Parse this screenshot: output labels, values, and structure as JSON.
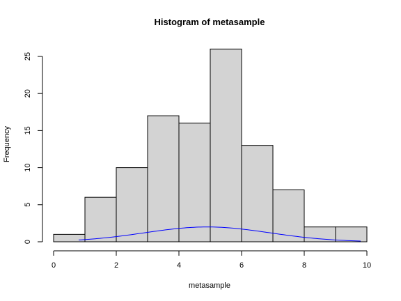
{
  "chart_data": {
    "type": "bar",
    "title": "Histogram of metasample",
    "xlabel": "metasample",
    "ylabel": "Frequency",
    "xlim": [
      0,
      10
    ],
    "ylim": [
      0,
      25
    ],
    "bins": [
      {
        "x0": 0,
        "x1": 1,
        "count": 1
      },
      {
        "x0": 1,
        "x1": 2,
        "count": 6
      },
      {
        "x0": 2,
        "x1": 3,
        "count": 10
      },
      {
        "x0": 3,
        "x1": 4,
        "count": 17
      },
      {
        "x0": 4,
        "x1": 5,
        "count": 16
      },
      {
        "x0": 5,
        "x1": 6,
        "count": 26
      },
      {
        "x0": 6,
        "x1": 7,
        "count": 13
      },
      {
        "x0": 7,
        "x1": 8,
        "count": 7
      },
      {
        "x0": 8,
        "x1": 9,
        "count": 2
      },
      {
        "x0": 9,
        "x1": 10,
        "count": 2
      }
    ],
    "x_ticks": [
      0,
      2,
      4,
      6,
      8,
      10
    ],
    "y_ticks": [
      0,
      5,
      10,
      15,
      20,
      25
    ],
    "curve": {
      "type": "normal-density",
      "mean": 4.9,
      "sd": 2.0,
      "x_range": [
        0.8,
        9.8
      ],
      "peak_value": 2.0,
      "color": "#0000ff"
    },
    "bar_fill": "#d3d3d3",
    "bar_stroke": "#000000",
    "grid": false
  }
}
